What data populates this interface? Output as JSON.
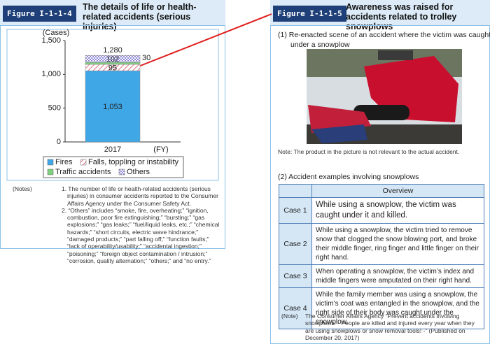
{
  "left": {
    "figure_label": "Figure I-1-1-4",
    "title": "The details of life or health-related accidents (serious injuries)",
    "notes_label": "(Notes)",
    "notes": [
      "1. The number of life or health-related accidents (serious injuries) in consumer accidents reported to the Consumer Affairs Agency under the Consumer Safety Act.",
      "2. “Others” includes “smoke, fire, overheating;” “ignition, combustion, poor fire extinguishing;” “bursting;” “gas explosions;” “gas leaks;” “fuel/liquid leaks, etc.;” “chemical hazards;” “short circuits, electric wave hindrance;” “damaged products;” “part falling off;” “function faults;” “lack of operability/usability;” “accidental ingestion;” “poisoning;” “foreign object contamination / intrusion;” “corrosion, quality alternation;” “others;” and “no entry.”"
    ]
  },
  "chart_data": {
    "type": "stacked-bar",
    "y_label": "(Cases)",
    "x_label": "(FY)",
    "categories": [
      "2017"
    ],
    "series": [
      {
        "name": "Fires",
        "color": "#3fa7e6",
        "pattern": "solid",
        "values": [
          1053
        ],
        "value_labels": [
          "1,053"
        ]
      },
      {
        "name": "Falls, toppling or instability",
        "color": "#e0707e",
        "pattern": "hatch",
        "values": [
          95
        ]
      },
      {
        "name": "Traffic accidents",
        "color": "#7fcf7f",
        "pattern": "solid",
        "values": [
          30
        ]
      },
      {
        "name": "Others",
        "color": "#8f86d6",
        "pattern": "check",
        "values": [
          102
        ]
      }
    ],
    "total": 1280,
    "total_label": "1,280",
    "ylim": [
      0,
      1500
    ],
    "yticks": [
      0,
      500,
      {
        "value": 1000,
        "label": "1,000"
      },
      {
        "value": 1500,
        "label": "1,500"
      }
    ],
    "grid": false
  },
  "right": {
    "figure_label": "Figure I-1-1-5",
    "title": "Awareness was raised for accidents related to trolley snowplows",
    "section1": "(1)  Re-enacted scene of an accident where the victim was caught under a snowplow",
    "photo_note": "Note: The product in the picture is not relevant to the actual accident.",
    "section2": "(2)  Accident examples involving snowplows",
    "table": {
      "header": "Overview",
      "rows": [
        [
          "Case 1",
          "While using a snowplow, the victim was caught under it and killed."
        ],
        [
          "Case 2",
          "While using a snowplow, the victim tried to remove snow that clogged the snow blowing port, and broke their middle finger, ring finger and little finger on their right hand."
        ],
        [
          "Case 3",
          "When operating a snowplow, the victim’s index and middle fingers were amputated on their right hand."
        ],
        [
          "Case 4",
          "While the family member was using a snowplow, the victim’s coat was entangled in the snowplow, and the right side of their body was caught under the snowplow."
        ]
      ]
    },
    "note_label": "(Note)",
    "note": "The Consumer Affairs Agency “Prevent accidents involving snowplows! - People are killed and injured every year when they are using snowplows or snow removal tools! -” (Published on December 20, 2017)"
  }
}
